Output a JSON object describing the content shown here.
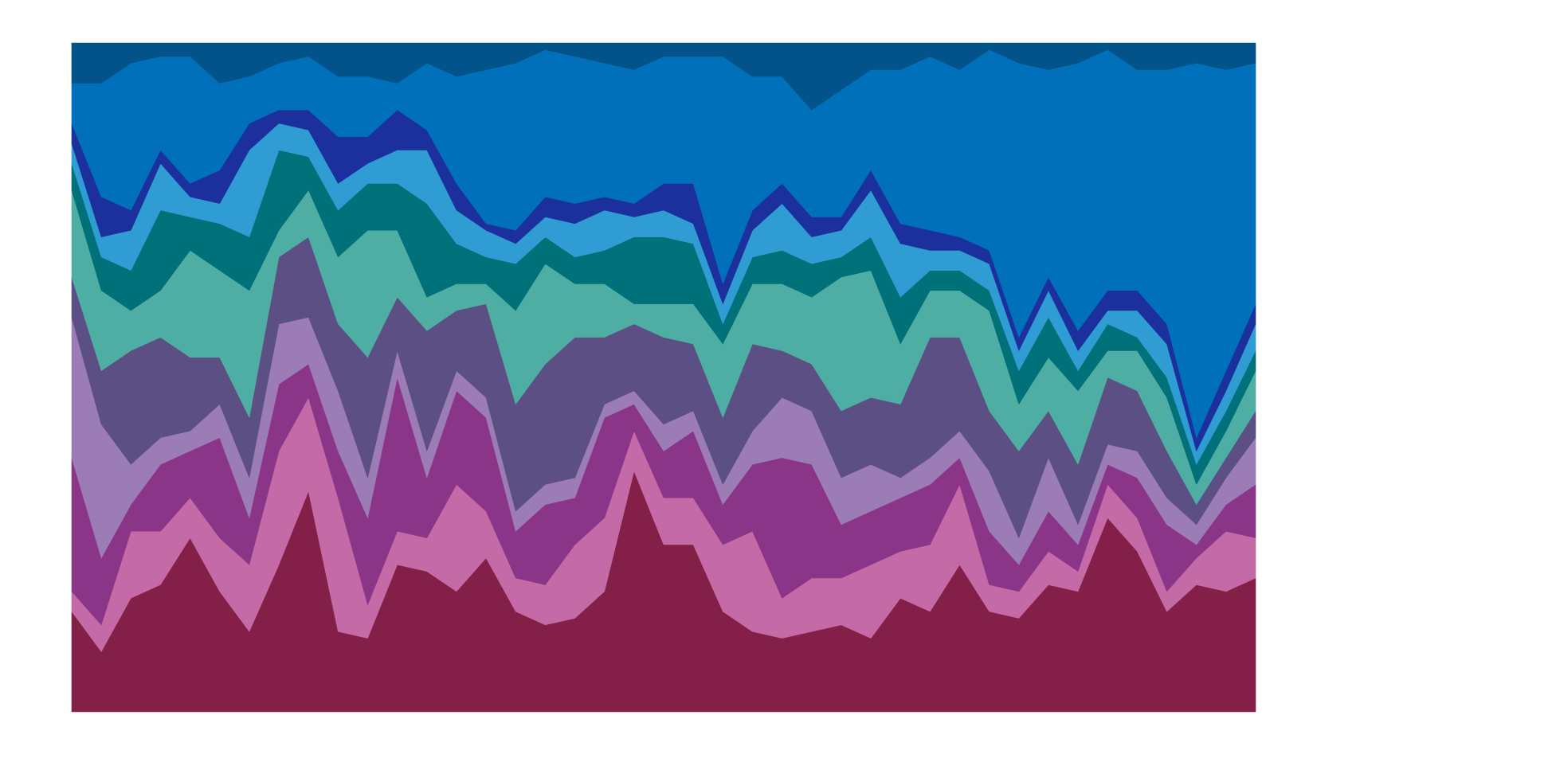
{
  "chart_data": {
    "type": "stacked-area",
    "categories": [
      null,
      null,
      null,
      null,
      null,
      null,
      null,
      null,
      null,
      null,
      null,
      null,
      null,
      null,
      null,
      null,
      null,
      null,
      null,
      null,
      null,
      null,
      null,
      null,
      null,
      null,
      null,
      null,
      null,
      null,
      null,
      null,
      null,
      null,
      null,
      null,
      null,
      null,
      null,
      null,
      null
    ],
    "ylim": [
      0,
      100
    ],
    "series": [
      {
        "color": "#842047",
        "values": [
          15,
          9,
          17,
          19,
          26,
          18,
          12,
          22,
          33,
          12,
          11,
          22,
          21,
          18,
          23,
          15,
          13,
          14,
          18,
          36,
          25,
          25,
          15,
          12,
          11,
          12,
          13,
          11,
          17,
          15,
          22,
          15,
          14,
          19,
          18,
          29,
          24,
          15,
          19,
          18,
          20
        ]
      },
      {
        "color": "#c46aa7",
        "values": [
          3,
          4,
          10,
          8,
          6,
          8,
          10,
          17,
          14,
          20,
          5,
          5,
          5,
          16,
          7,
          5,
          6,
          11,
          11,
          6,
          7,
          7,
          10,
          15,
          6,
          8,
          7,
          11,
          7,
          10,
          12,
          4,
          4,
          5,
          3,
          5,
          5,
          3,
          4,
          9,
          6
        ]
      },
      {
        "color": "#8b3589",
        "values": [
          20,
          10,
          4,
          10,
          7,
          15,
          7,
          10,
          5,
          7,
          13,
          23,
          9,
          14,
          14,
          7,
          12,
          7,
          15,
          4,
          7,
          10,
          6,
          10,
          21,
          17,
          8,
          8,
          8,
          9,
          4,
          8,
          4,
          6,
          4,
          3,
          6,
          10,
          2,
          4,
          8
        ]
      },
      {
        "color": "#9c7cb5",
        "values": [
          21,
          20,
          6,
          4,
          3,
          5,
          6,
          9,
          7,
          9,
          6,
          4,
          4,
          3,
          3,
          3,
          3,
          3,
          2,
          2,
          4,
          3,
          3,
          5,
          9,
          8,
          7,
          7,
          3,
          4,
          4,
          9,
          4,
          8,
          3,
          3,
          4,
          4,
          3,
          4,
          7
        ]
      },
      {
        "color": "#5b4f84",
        "values": [
          6,
          8,
          17,
          15,
          11,
          7,
          9,
          10,
          12,
          10,
          18,
          8,
          18,
          9,
          14,
          16,
          18,
          21,
          10,
          10,
          13,
          10,
          10,
          13,
          7,
          7,
          10,
          10,
          11,
          18,
          14,
          9,
          13,
          7,
          9,
          10,
          9,
          7,
          3,
          3,
          4
        ]
      },
      {
        "color": "#4eaea3",
        "values": [
          13,
          12,
          6,
          7,
          16,
          13,
          19,
          4,
          7,
          10,
          19,
          10,
          5,
          4,
          3,
          14,
          15,
          8,
          8,
          3,
          5,
          6,
          11,
          9,
          10,
          10,
          20,
          19,
          9,
          7,
          7,
          15,
          7,
          8,
          11,
          4,
          6,
          8,
          3,
          4,
          6
        ]
      },
      {
        "color": "#007079",
        "values": [
          4,
          5,
          6,
          12,
          5,
          7,
          8,
          12,
          5,
          7,
          7,
          7,
          14,
          6,
          4,
          7,
          4,
          4,
          5,
          10,
          10,
          9,
          3,
          4,
          5,
          5,
          3,
          5,
          7,
          3,
          3,
          3,
          5,
          6,
          3,
          4,
          2,
          3,
          3,
          3,
          3
        ]
      },
      {
        "color": "#2f9dd3",
        "values": [
          3,
          3,
          6,
          7,
          3,
          3,
          13,
          4,
          4,
          4,
          3,
          5,
          8,
          5,
          4,
          3,
          3,
          5,
          6,
          3,
          4,
          3,
          3,
          4,
          7,
          4,
          4,
          7,
          8,
          3,
          3,
          4,
          3,
          4,
          3,
          2,
          4,
          5,
          2,
          3,
          4
        ]
      },
      {
        "color": "#1c309d",
        "values": [
          3,
          6,
          3,
          2,
          2,
          5,
          4,
          2,
          3,
          7,
          4,
          6,
          3,
          4,
          1,
          2,
          3,
          3,
          2,
          2,
          4,
          6,
          3,
          3,
          3,
          3,
          2,
          3,
          3,
          3,
          2,
          2,
          2,
          2,
          3,
          3,
          3,
          3,
          2,
          3,
          3
        ]
      },
      {
        "color": "#0070ba",
        "values": [
          6,
          17,
          22,
          14,
          19,
          13,
          7,
          7,
          8,
          9,
          9,
          4,
          10,
          16,
          23,
          25,
          22,
          22,
          20,
          20,
          19,
          19,
          34,
          20,
          16,
          16,
          19,
          15,
          23,
          26,
          25,
          30,
          41,
          31,
          40,
          36,
          33,
          38,
          56,
          45,
          36
        ]
      },
      {
        "color": "#015389",
        "values": [
          6,
          6,
          3,
          2,
          2,
          6,
          5,
          3,
          2,
          5,
          5,
          6,
          3,
          5,
          4,
          3,
          1,
          2,
          3,
          4,
          2,
          2,
          2,
          5,
          5,
          10,
          7,
          4,
          4,
          2,
          4,
          1,
          3,
          4,
          3,
          1,
          4,
          4,
          3,
          4,
          3
        ]
      }
    ]
  }
}
